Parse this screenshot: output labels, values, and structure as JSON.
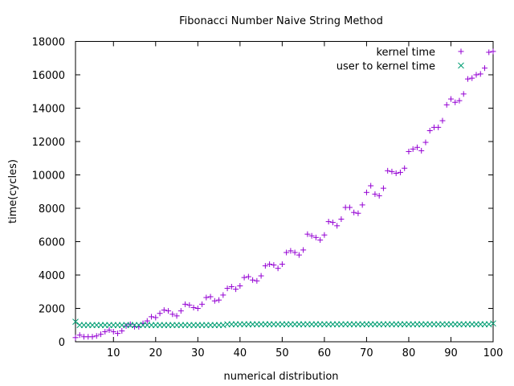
{
  "chart_data": {
    "type": "scatter",
    "title": "Fibonacci Number Naive String Method",
    "xlabel": "numerical distribution",
    "ylabel": "time(cycles)",
    "xlim": [
      1,
      100
    ],
    "ylim": [
      0,
      18000
    ],
    "xticks": [
      10,
      20,
      30,
      40,
      50,
      60,
      70,
      80,
      90,
      100
    ],
    "yticks": [
      0,
      2000,
      4000,
      6000,
      8000,
      10000,
      12000,
      14000,
      16000,
      18000
    ],
    "grid": false,
    "legend_position": "top-right",
    "series": [
      {
        "name": "kernel time",
        "marker": "plus",
        "color": "#9400d3",
        "x": [
          1,
          2,
          3,
          4,
          5,
          6,
          7,
          8,
          9,
          10,
          11,
          12,
          13,
          14,
          15,
          16,
          17,
          18,
          19,
          20,
          21,
          22,
          23,
          24,
          25,
          26,
          27,
          28,
          29,
          30,
          31,
          32,
          33,
          34,
          35,
          36,
          37,
          38,
          39,
          40,
          41,
          42,
          43,
          44,
          45,
          46,
          47,
          48,
          49,
          50,
          51,
          52,
          53,
          54,
          55,
          56,
          57,
          58,
          59,
          60,
          61,
          62,
          63,
          64,
          65,
          66,
          67,
          68,
          69,
          70,
          71,
          72,
          73,
          74,
          75,
          76,
          77,
          78,
          79,
          80,
          81,
          82,
          83,
          84,
          85,
          86,
          87,
          88,
          89,
          90,
          91,
          92,
          93,
          94,
          95,
          96,
          97,
          98,
          99,
          100
        ],
        "y": [
          250,
          400,
          300,
          300,
          300,
          350,
          450,
          600,
          700,
          600,
          500,
          650,
          950,
          1050,
          900,
          900,
          1100,
          1250,
          1500,
          1450,
          1700,
          1900,
          1850,
          1650,
          1550,
          1850,
          2250,
          2200,
          2050,
          2000,
          2250,
          2650,
          2700,
          2450,
          2500,
          2800,
          3200,
          3300,
          3150,
          3350,
          3850,
          3900,
          3700,
          3650,
          3950,
          4550,
          4650,
          4600,
          4400,
          4650,
          5350,
          5450,
          5350,
          5200,
          5500,
          6450,
          6350,
          6250,
          6100,
          6400,
          7200,
          7150,
          6950,
          7350,
          8050,
          8050,
          7750,
          7700,
          8200,
          8950,
          9350,
          8850,
          8750,
          9200,
          10250,
          10200,
          10100,
          10150,
          10400,
          11400,
          11550,
          11650,
          11450,
          11950,
          12650,
          12850,
          12850,
          13250,
          14200,
          14550,
          14350,
          14450,
          14850,
          15750,
          15800,
          16000,
          16050,
          16400,
          17350,
          17400
        ]
      },
      {
        "name": "user to kernel time",
        "marker": "cross",
        "color": "#009e73",
        "x": [
          1,
          2,
          3,
          4,
          5,
          6,
          7,
          8,
          9,
          10,
          11,
          12,
          13,
          14,
          15,
          16,
          17,
          18,
          19,
          20,
          21,
          22,
          23,
          24,
          25,
          26,
          27,
          28,
          29,
          30,
          31,
          32,
          33,
          34,
          35,
          36,
          37,
          38,
          39,
          40,
          41,
          42,
          43,
          44,
          45,
          46,
          47,
          48,
          49,
          50,
          51,
          52,
          53,
          54,
          55,
          56,
          57,
          58,
          59,
          60,
          61,
          62,
          63,
          64,
          65,
          66,
          67,
          68,
          69,
          70,
          71,
          72,
          73,
          74,
          75,
          76,
          77,
          78,
          79,
          80,
          81,
          82,
          83,
          84,
          85,
          86,
          87,
          88,
          89,
          90,
          91,
          92,
          93,
          94,
          95,
          96,
          97,
          98,
          99,
          100
        ],
        "y": [
          1200,
          1000,
          1000,
          1000,
          1000,
          1000,
          1000,
          1000,
          1000,
          1000,
          1000,
          1000,
          1000,
          1000,
          1000,
          1000,
          1000,
          1000,
          1000,
          1000,
          1000,
          1000,
          1000,
          1000,
          1000,
          1000,
          1000,
          1000,
          1000,
          1000,
          1000,
          1000,
          1000,
          1000,
          1000,
          1000,
          1050,
          1050,
          1050,
          1050,
          1050,
          1050,
          1050,
          1050,
          1050,
          1050,
          1050,
          1050,
          1050,
          1050,
          1050,
          1050,
          1050,
          1050,
          1050,
          1050,
          1050,
          1050,
          1050,
          1050,
          1050,
          1050,
          1050,
          1050,
          1050,
          1050,
          1050,
          1050,
          1050,
          1050,
          1050,
          1050,
          1050,
          1050,
          1050,
          1050,
          1050,
          1050,
          1050,
          1050,
          1050,
          1050,
          1050,
          1050,
          1050,
          1050,
          1050,
          1050,
          1050,
          1050,
          1050,
          1050,
          1050,
          1050,
          1050,
          1050,
          1050,
          1050,
          1050,
          1100
        ]
      }
    ]
  }
}
